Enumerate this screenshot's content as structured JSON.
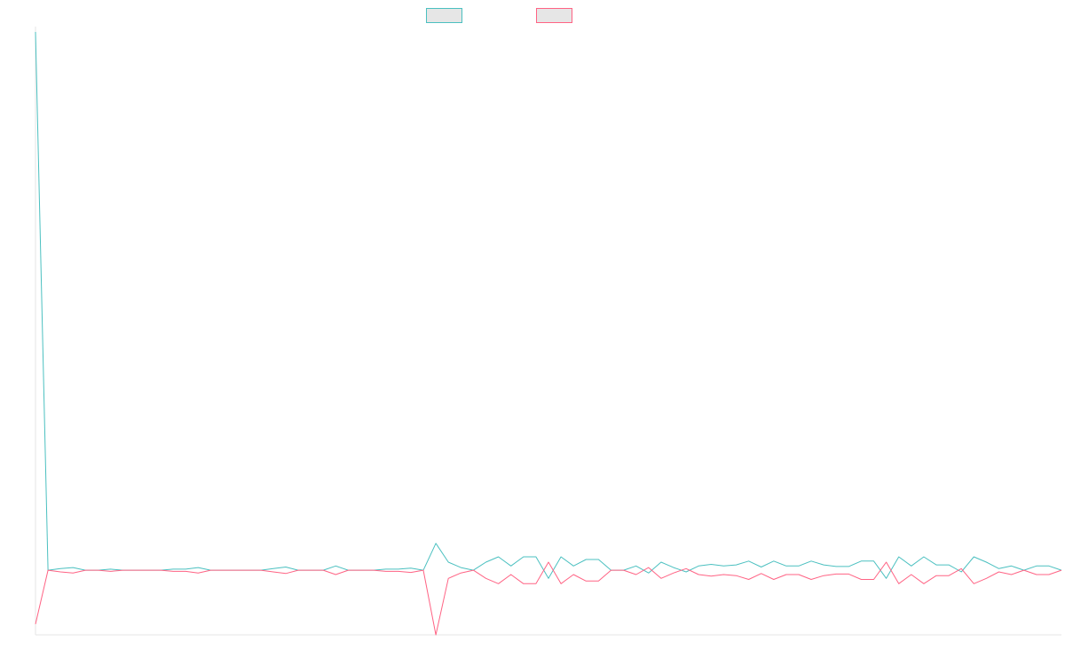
{
  "chart_data": {
    "type": "line",
    "title": "",
    "xlabel": "",
    "ylabel": "",
    "legend_position": "top-center",
    "grid": false,
    "x_count": 83,
    "ylim": [
      -12,
      100
    ],
    "series": [
      {
        "name": "",
        "color": "#4bc0c0",
        "fill": "#e6e6e6",
        "values": [
          100,
          0,
          0.5,
          0,
          0,
          0,
          0,
          0,
          0,
          0,
          0,
          0,
          0.2,
          0,
          0,
          0,
          0,
          0,
          0,
          0.3,
          0,
          0,
          0,
          0,
          0,
          0,
          0,
          0,
          0.2,
          0,
          0,
          0,
          0,
          0,
          0,
          0,
          0,
          0.2,
          0,
          0,
          0,
          0,
          0.5,
          0,
          0,
          0,
          0,
          0,
          0,
          0,
          0,
          0,
          0,
          0,
          0,
          0,
          0,
          0,
          0,
          0,
          0,
          0,
          0,
          0,
          0,
          0,
          0,
          0,
          0,
          0,
          0,
          0,
          0,
          0,
          0,
          0,
          0,
          0,
          0,
          0,
          0,
          0,
          0,
          0
        ]
      },
      {
        "name": "",
        "color": "#ff6384",
        "fill": "#e6e6e6",
        "values": []
      }
    ]
  }
}
